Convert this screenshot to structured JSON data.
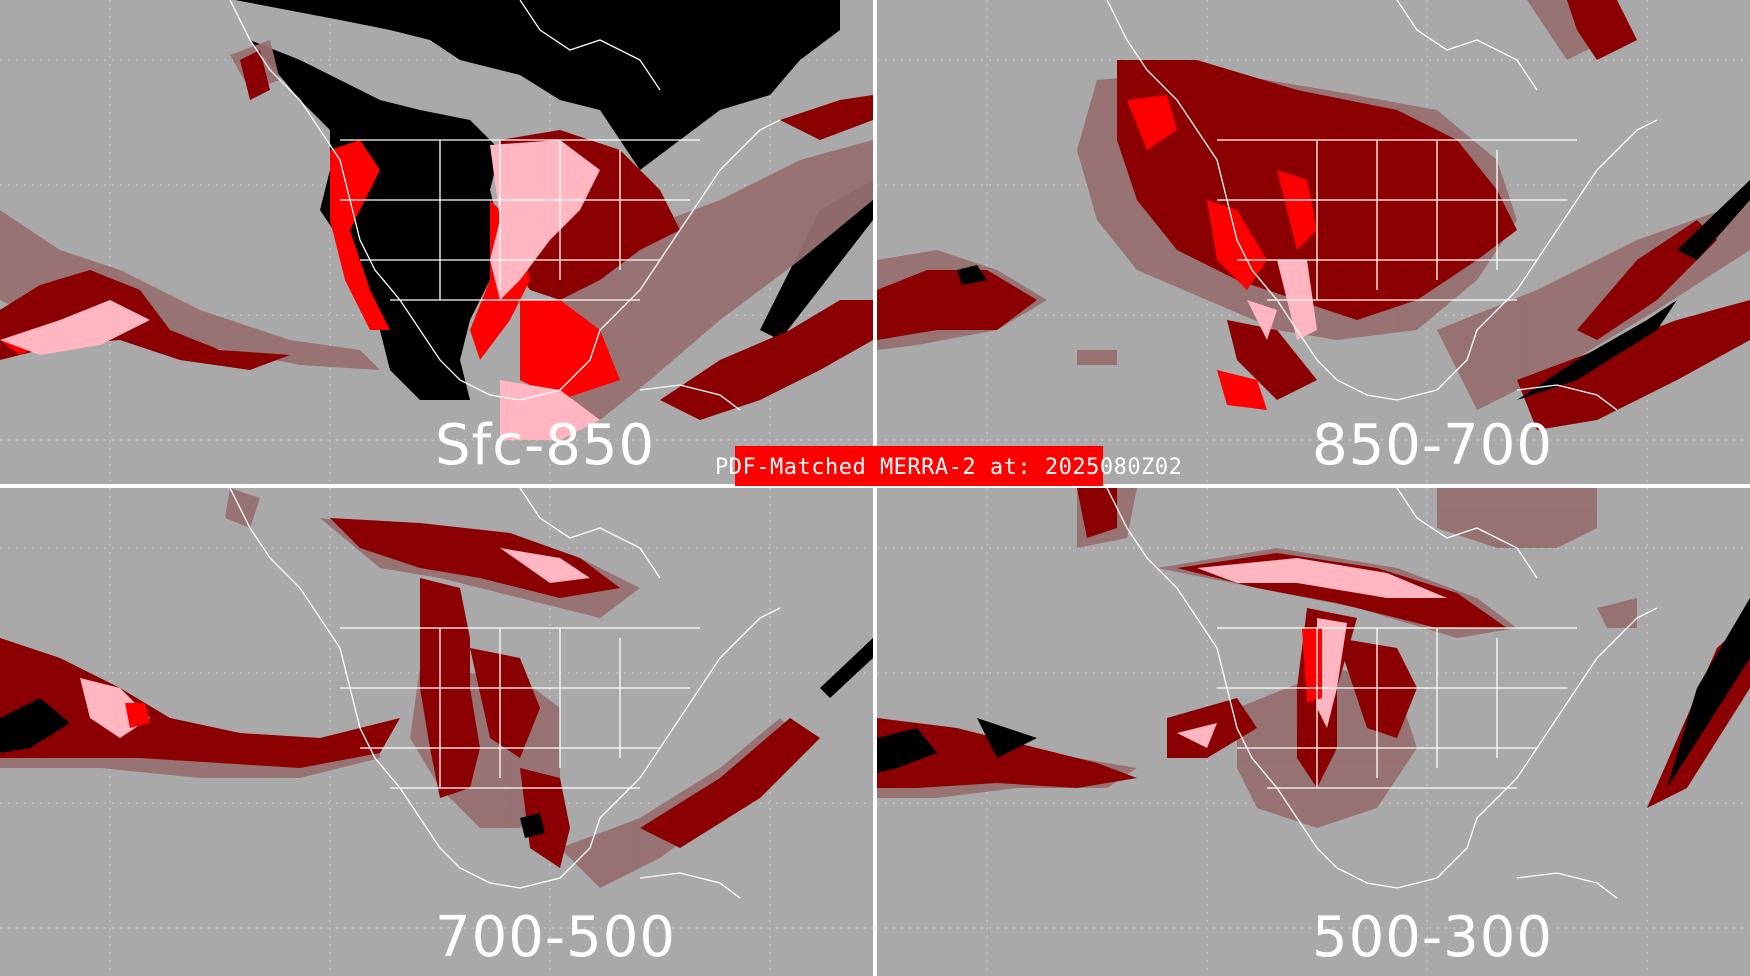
{
  "title": "PDF-Matched MERRA-2 at: 2025080Z02",
  "colors": {
    "background": "#a9a9a9",
    "dark_red": "#8b0000",
    "red": "#ff0000",
    "pink": "#ffb6c1",
    "mauve": "#977070",
    "black": "#000000",
    "borders": "#ffffff",
    "banner": "#ff0000"
  },
  "panels": [
    {
      "label": "Sfc-850"
    },
    {
      "label": "850-700"
    },
    {
      "label": "700-500"
    },
    {
      "label": "500-300"
    }
  ]
}
